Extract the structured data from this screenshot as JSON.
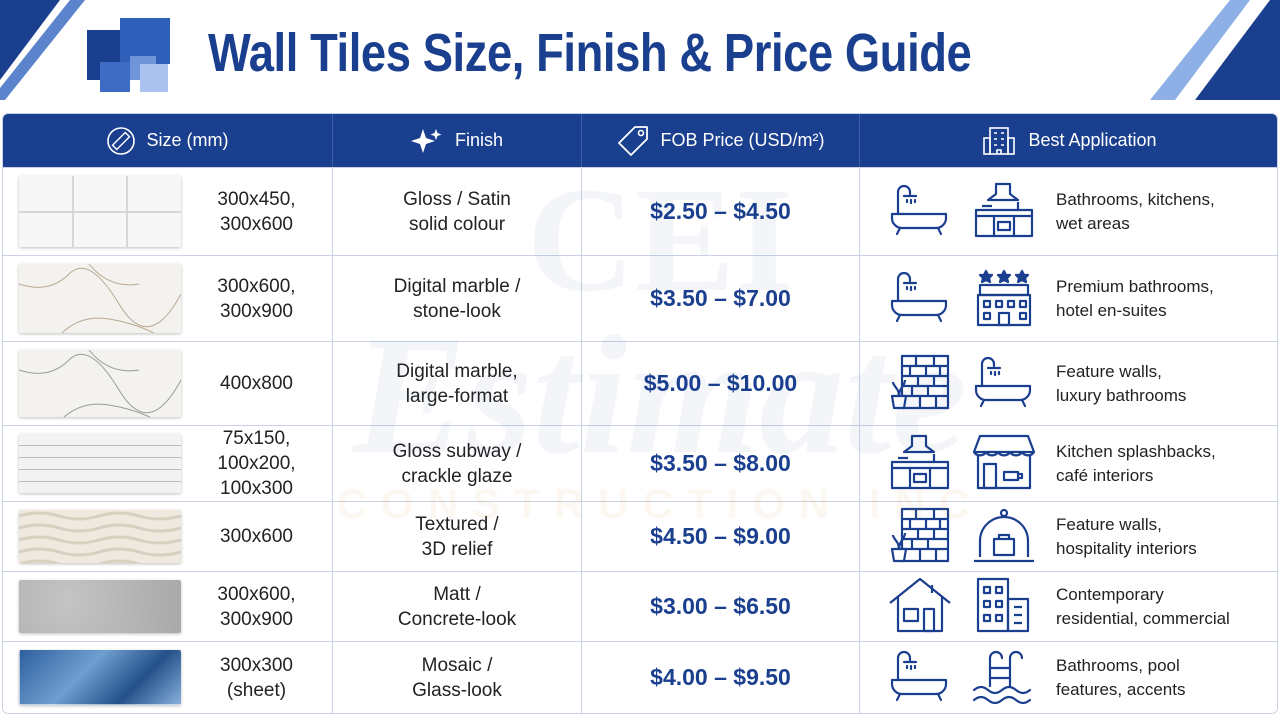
{
  "header": {
    "title": "Wall Tiles Size, Finish & Price Guide"
  },
  "watermark": {
    "lines": [
      "CEI",
      "Estimate",
      "CONSTRUCTION INC"
    ]
  },
  "table": {
    "columns": [
      "Size (mm)",
      "Finish",
      "FOB Price (USD/m²)",
      "Best Application"
    ],
    "rows": [
      {
        "size": "300x450,\n300x600",
        "finish": "Gloss / Satin\nsolid colour",
        "price": "$2.50 – $4.50",
        "application": "Bathrooms, kitchens,\nwet areas"
      },
      {
        "size": "300x600,\n300x900",
        "finish": "Digital marble /\nstone-look",
        "price": "$3.50 – $7.00",
        "application": "Premium bathrooms,\nhotel en-suites"
      },
      {
        "size": "400x800",
        "finish": "Digital marble,\nlarge-format",
        "price": "$5.00 – $10.00",
        "application": "Feature walls,\nluxury bathrooms"
      },
      {
        "size": "75x150,\n100x200,\n100x300",
        "finish": "Gloss subway /\ncrackle glaze",
        "price": "$3.50 – $8.00",
        "application": "Kitchen splashbacks,\ncafé interiors"
      },
      {
        "size": "300x600",
        "finish": "Textured /\n3D relief",
        "price": "$4.50 – $9.00",
        "application": "Feature walls,\nhospitality interiors"
      },
      {
        "size": "300x600,\n300x900",
        "finish": "Matt /\nConcrete-look",
        "price": "$3.00 – $6.50",
        "application": "Contemporary\nresidential, commercial"
      },
      {
        "size": "300x300\n(sheet)",
        "finish": "Mosaic /\nGlass-look",
        "price": "$4.00 – $9.50",
        "application": "Bathrooms, pool\nfeatures, accents"
      }
    ]
  }
}
